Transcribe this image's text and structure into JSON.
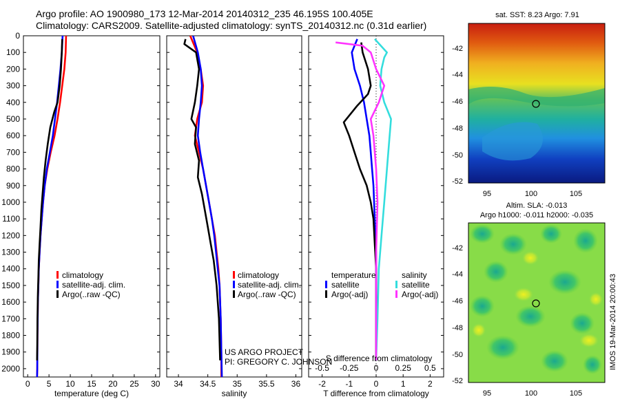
{
  "header": {
    "line1": "Argo profile: AO 1900980_173 12-Mar-2014 20140312_235 46.195S 100.405E",
    "line2": "Climatology: CARS2009. Satellite-adjusted climatology: synTS_20140312.nc (0.31d earlier)"
  },
  "credits": {
    "project": "US ARGO PROJECT",
    "pi": "PI: GREGORY C. JOHNSON",
    "imos": "IMOS 19-Mar-2014 20:00:43"
  },
  "colors": {
    "climatology": "#ff0000",
    "satellite": "#0000ff",
    "argo": "#000000",
    "sal_satellite": "#33dddd",
    "sal_argo": "#ff33ff"
  },
  "chart_data": [
    {
      "id": "temperature",
      "type": "line",
      "xlabel": "temperature (deg C)",
      "ylabel": "",
      "xlim": [
        -1,
        31
      ],
      "ylim": [
        2050,
        0
      ],
      "xticks": [
        0,
        5,
        10,
        15,
        20,
        25,
        30
      ],
      "yticks": [
        0,
        100,
        200,
        300,
        400,
        500,
        600,
        700,
        800,
        900,
        1000,
        1100,
        1200,
        1300,
        1400,
        1500,
        1600,
        1700,
        1800,
        1900,
        2000
      ],
      "legend": [
        "climatology",
        "satellite-adj. clim.",
        "Argo(..raw -QC)"
      ],
      "series": [
        {
          "name": "climatology",
          "color": "#ff0000",
          "x": [
            9.0,
            8.9,
            8.6,
            8.1,
            7.6,
            7.0,
            6.3,
            5.4,
            4.6,
            4.0,
            3.6,
            3.3,
            3.0,
            2.8,
            2.6,
            2.5,
            2.4,
            2.3,
            2.25,
            2.2
          ],
          "y": [
            0,
            100,
            200,
            300,
            400,
            500,
            600,
            700,
            800,
            900,
            1000,
            1100,
            1200,
            1300,
            1400,
            1500,
            1600,
            1800,
            2000,
            2050
          ]
        },
        {
          "name": "satellite-adj. clim.",
          "color": "#0000ff",
          "x": [
            8.2,
            8.0,
            7.7,
            7.3,
            6.9,
            6.4,
            5.9,
            5.2,
            4.5,
            4.0,
            3.6,
            3.3,
            3.0,
            2.8,
            2.6,
            2.5,
            2.4,
            2.3,
            2.25,
            2.2
          ],
          "y": [
            0,
            100,
            200,
            300,
            400,
            500,
            600,
            700,
            800,
            900,
            1000,
            1100,
            1200,
            1300,
            1400,
            1500,
            1600,
            1800,
            2000,
            2050
          ]
        },
        {
          "name": "Argo(..raw -QC)",
          "color": "#000000",
          "x": [
            8.1,
            8.0,
            7.8,
            7.5,
            7.0,
            6.2,
            5.3,
            4.7,
            4.2,
            3.8,
            3.5,
            3.2,
            3.0,
            2.8,
            2.6,
            2.5,
            2.4,
            2.3,
            2.25,
            2.2
          ],
          "y": [
            20,
            100,
            200,
            300,
            400,
            460,
            550,
            650,
            750,
            850,
            950,
            1050,
            1150,
            1250,
            1350,
            1450,
            1550,
            1700,
            1850,
            1950
          ]
        }
      ]
    },
    {
      "id": "salinity",
      "type": "line",
      "xlabel": "salinity",
      "ylabel": "",
      "xlim": [
        33.8,
        36.1
      ],
      "ylim": [
        2050,
        0
      ],
      "xticks": [
        34,
        34.5,
        35,
        35.5,
        36
      ],
      "legend": [
        "climatology",
        "satellite-adj. clim.",
        "Argo(..raw -QC)"
      ],
      "series": [
        {
          "name": "climatology",
          "color": "#ff0000",
          "x": [
            34.2,
            34.32,
            34.38,
            34.42,
            34.4,
            34.32,
            34.28,
            34.35,
            34.42,
            34.47,
            34.52,
            34.57,
            34.62,
            34.65,
            34.68,
            34.7,
            34.72,
            34.73,
            34.73
          ],
          "y": [
            0,
            100,
            200,
            300,
            400,
            500,
            600,
            700,
            800,
            900,
            1000,
            1100,
            1200,
            1300,
            1400,
            1500,
            1700,
            1900,
            2050
          ]
        },
        {
          "name": "satellite-adj. clim.",
          "color": "#0000ff",
          "x": [
            34.25,
            34.33,
            34.38,
            34.4,
            34.38,
            34.35,
            34.33,
            34.37,
            34.42,
            34.47,
            34.52,
            34.57,
            34.61,
            34.64,
            34.67,
            34.7,
            34.72,
            34.73,
            34.74
          ],
          "y": [
            0,
            100,
            200,
            300,
            400,
            500,
            600,
            700,
            800,
            900,
            1000,
            1100,
            1200,
            1300,
            1400,
            1500,
            1700,
            1900,
            2050
          ]
        },
        {
          "name": "Argo(..raw -QC)",
          "color": "#000000",
          "x": [
            34.12,
            34.1,
            34.3,
            34.35,
            34.32,
            34.28,
            34.22,
            34.3,
            34.28,
            34.35,
            34.33,
            34.4,
            34.45,
            34.5,
            34.55,
            34.6,
            34.65,
            34.69,
            34.71
          ],
          "y": [
            20,
            50,
            100,
            200,
            300,
            400,
            500,
            550,
            650,
            750,
            850,
            950,
            1050,
            1150,
            1250,
            1350,
            1500,
            1700,
            1950
          ]
        }
      ]
    },
    {
      "id": "differences",
      "type": "line",
      "xlabel": "T difference from climatology",
      "x2label": "S difference from climatology",
      "ylabel": "",
      "xlim": [
        -2.5,
        2.5
      ],
      "ylim": [
        2050,
        0
      ],
      "xticks": [
        -2,
        -1,
        0,
        1,
        2
      ],
      "x2ticks": [
        "-0.5",
        "-0.25",
        "0",
        "0.25",
        "0.5"
      ],
      "legend_temperature_title": "temperature",
      "legend_salinity_title": "salinity",
      "legend_temperature": [
        "satellite",
        "Argo(-adj)"
      ],
      "legend_salinity": [
        "satellite",
        "Argo(-adj)"
      ],
      "series": [
        {
          "name": "satellite",
          "group": "temperature",
          "color": "#0000ff",
          "x": [
            -0.7,
            -0.9,
            -0.8,
            -0.6,
            -0.45,
            -0.35,
            -0.25,
            -0.2,
            -0.15,
            -0.1,
            -0.05,
            0,
            0,
            0
          ],
          "y": [
            20,
            100,
            200,
            300,
            400,
            500,
            600,
            700,
            800,
            900,
            1100,
            1300,
            1600,
            1950
          ]
        },
        {
          "name": "Argo(-adj)",
          "group": "temperature",
          "color": "#000000",
          "x": [
            -0.55,
            -0.5,
            -0.3,
            -0.2,
            -0.3,
            -0.7,
            -1.2,
            -1.0,
            -0.8,
            -0.6,
            -0.35,
            -0.2,
            -0.1,
            -0.05,
            0,
            0
          ],
          "y": [
            40,
            100,
            200,
            300,
            350,
            420,
            520,
            600,
            700,
            800,
            900,
            1000,
            1100,
            1250,
            1400,
            1950
          ]
        },
        {
          "name": "satellite",
          "group": "salinity",
          "color": "#33dddd",
          "x": [
            -0.05,
            0.4,
            0.3,
            0.2,
            0.15,
            0.3,
            0.55,
            0.5,
            0.4,
            0.3,
            0.2,
            0.1,
            0.05,
            0
          ],
          "y": [
            20,
            100,
            130,
            200,
            300,
            400,
            500,
            600,
            800,
            1000,
            1200,
            1400,
            1700,
            1950
          ]
        },
        {
          "name": "Argo(-adj)",
          "group": "salinity",
          "color": "#ff33ff",
          "x": [
            -1.5,
            -0.5,
            -0.2,
            0,
            0.3,
            0.1,
            -0.2,
            -0.1,
            0,
            0.05,
            0,
            0
          ],
          "y": [
            40,
            60,
            100,
            200,
            300,
            400,
            500,
            600,
            800,
            1000,
            1300,
            1950
          ]
        }
      ]
    }
  ],
  "sst_map": {
    "title": "sat. SST: 8.23 Argo: 7.91",
    "xticks": [
      "95",
      "100",
      "105"
    ],
    "yticks": [
      "-42",
      "-44",
      "-46",
      "-48",
      "-50",
      "-52"
    ]
  },
  "sla_map": {
    "title1": "Altim. SLA: -0.013",
    "title2": "Argo h1000: -0.011 h2000: -0.035",
    "xticks": [
      "95",
      "100",
      "105"
    ],
    "yticks": [
      "-42",
      "-44",
      "-46",
      "-48",
      "-50",
      "-52"
    ]
  }
}
